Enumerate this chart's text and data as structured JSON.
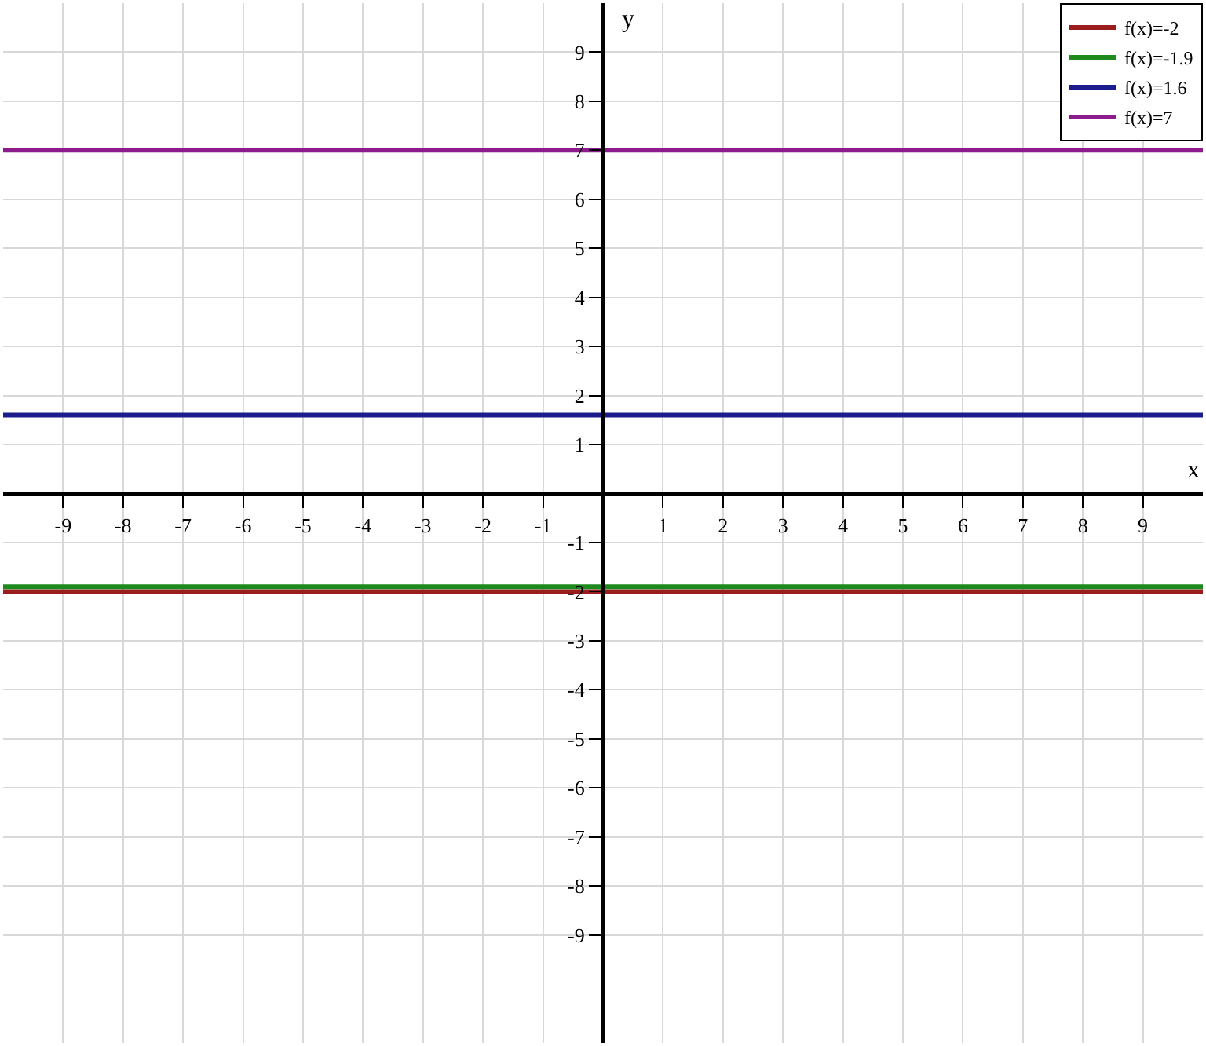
{
  "chart_data": {
    "type": "line",
    "xlabel": "x",
    "ylabel": "y",
    "x": [
      -10,
      10
    ],
    "series": [
      {
        "name": "f(x)=-2",
        "color": "#9b1c1c",
        "values": [
          -2,
          -2
        ]
      },
      {
        "name": "f(x)=-1.9",
        "color": "#1e8a1e",
        "values": [
          -1.9,
          -1.9
        ]
      },
      {
        "name": "f(x)=1.6",
        "color": "#1c1c8c",
        "values": [
          1.6,
          1.6
        ]
      },
      {
        "name": "f(x)=7",
        "color": "#8c1c8c",
        "values": [
          7,
          7
        ]
      }
    ],
    "xlim": [
      -10,
      10
    ],
    "ylim": [
      -11.2,
      10
    ],
    "xticks": [
      -9,
      -8,
      -7,
      -6,
      -5,
      -4,
      -3,
      -2,
      -1,
      1,
      2,
      3,
      4,
      5,
      6,
      7,
      8,
      9
    ],
    "yticks": [
      -9,
      -8,
      -7,
      -6,
      -5,
      -4,
      -3,
      -2,
      -1,
      1,
      2,
      3,
      4,
      5,
      6,
      7,
      8,
      9
    ],
    "grid": true,
    "legend": "top right",
    "marker": "none",
    "line_style": "solid"
  }
}
